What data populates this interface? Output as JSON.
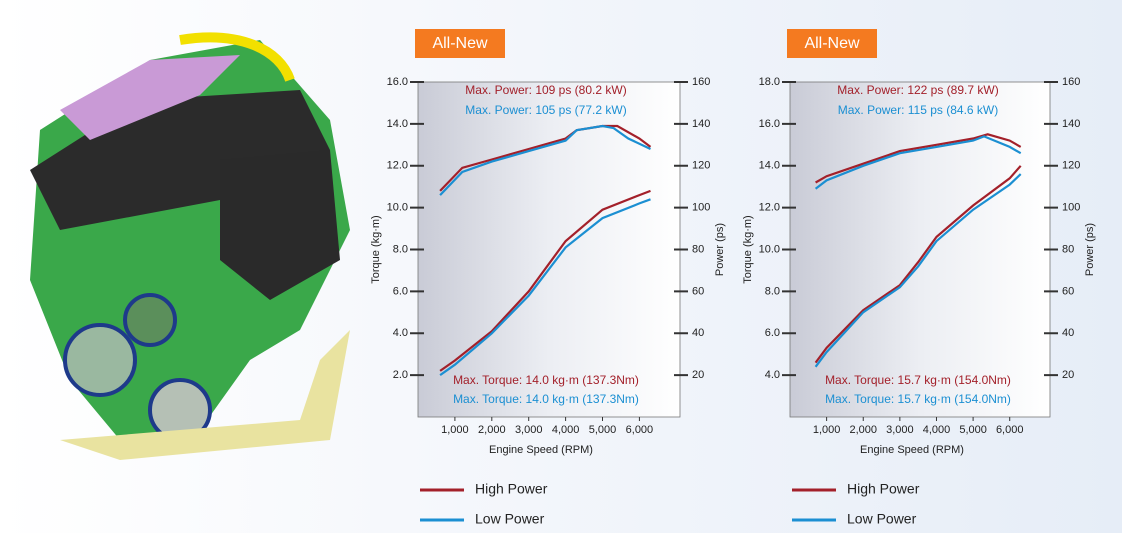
{
  "chart_data": [
    {
      "type": "line",
      "badge": "All-New",
      "x_label": "Engine Speed (RPM)",
      "y_label": "Torque (kg·m)",
      "y2_label": "Power (ps)",
      "xlim": [
        0,
        7100
      ],
      "xticks": [
        {
          "value": 1000,
          "label": "1,000"
        },
        {
          "value": 2000,
          "label": "2,000"
        },
        {
          "value": 3000,
          "label": "3,000"
        },
        {
          "value": 4000,
          "label": "4,000"
        },
        {
          "value": 5000,
          "label": "5,000"
        },
        {
          "value": 6000,
          "label": "6,000"
        }
      ],
      "ylim": [
        0,
        16
      ],
      "yticks": [
        {
          "value": 2,
          "label": "2.0"
        },
        {
          "value": 4,
          "label": "4.0"
        },
        {
          "value": 6,
          "label": "6.0"
        },
        {
          "value": 8,
          "label": "8.0"
        },
        {
          "value": 10,
          "label": "10.0"
        },
        {
          "value": 12,
          "label": "12.0"
        },
        {
          "value": 14,
          "label": "14.0"
        },
        {
          "value": 16,
          "label": "16.0"
        }
      ],
      "y2lim": [
        0,
        160
      ],
      "y2ticks": [
        20,
        40,
        60,
        80,
        100,
        120,
        140,
        160
      ],
      "annotations": [
        {
          "text": "Max. Power: 109 ps (80.2 kW)",
          "color": "#a3202a"
        },
        {
          "text": "Max. Power: 105 ps (77.2 kW)",
          "color": "#1b8fd2"
        },
        {
          "text": "Max. Torque: 14.0 kg·m (137.3Nm)",
          "color": "#a3202a"
        },
        {
          "text": "Max. Torque: 14.0 kg·m (137.3Nm)",
          "color": "#1b8fd2"
        }
      ],
      "series": [
        {
          "name": "High Power",
          "color": "#a3202a",
          "axis": "y",
          "x": [
            600,
            1200,
            2000,
            3000,
            4000,
            4300,
            5000,
            5400,
            6000,
            6300
          ],
          "values": [
            10.8,
            11.9,
            12.3,
            12.8,
            13.3,
            13.7,
            13.9,
            13.9,
            13.3,
            12.9
          ]
        },
        {
          "name": "Low Power",
          "color": "#1b8fd2",
          "axis": "y",
          "x": [
            600,
            1200,
            2000,
            3000,
            4000,
            4300,
            5000,
            5300,
            5700,
            6300
          ],
          "values": [
            10.6,
            11.7,
            12.2,
            12.7,
            13.2,
            13.7,
            13.9,
            13.8,
            13.3,
            12.8
          ]
        },
        {
          "name": "High Power",
          "color": "#a3202a",
          "axis": "y2",
          "x": [
            600,
            1000,
            2000,
            3000,
            4000,
            5000,
            6000,
            6300
          ],
          "values": [
            22,
            27,
            41,
            60,
            84,
            99,
            106,
            108
          ]
        },
        {
          "name": "Low Power",
          "color": "#1b8fd2",
          "axis": "y2",
          "x": [
            600,
            1000,
            2000,
            3000,
            4000,
            5000,
            6000,
            6300
          ],
          "values": [
            20,
            25,
            40,
            58,
            81,
            95,
            102,
            104
          ]
        }
      ]
    },
    {
      "type": "line",
      "badge": "All-New",
      "x_label": "Engine Speed (RPM)",
      "y_label": "Torque (kg·m)",
      "y2_label": "Power (ps)",
      "xlim": [
        0,
        7100
      ],
      "xticks": [
        {
          "value": 1000,
          "label": "1,000"
        },
        {
          "value": 2000,
          "label": "2,000"
        },
        {
          "value": 3000,
          "label": "3,000"
        },
        {
          "value": 4000,
          "label": "4,000"
        },
        {
          "value": 5000,
          "label": "5,000"
        },
        {
          "value": 6000,
          "label": "6,000"
        }
      ],
      "ylim": [
        2,
        18
      ],
      "yticks": [
        {
          "value": 4,
          "label": "4.0"
        },
        {
          "value": 6,
          "label": "6.0"
        },
        {
          "value": 8,
          "label": "8.0"
        },
        {
          "value": 10,
          "label": "10.0"
        },
        {
          "value": 12,
          "label": "12.0"
        },
        {
          "value": 14,
          "label": "14.0"
        },
        {
          "value": 16,
          "label": "16.0"
        },
        {
          "value": 18,
          "label": "18.0"
        }
      ],
      "y2lim": [
        0,
        160
      ],
      "y2ticks": [
        20,
        40,
        60,
        80,
        100,
        120,
        140,
        160
      ],
      "annotations": [
        {
          "text": "Max. Power: 122 ps (89.7 kW)",
          "color": "#a3202a"
        },
        {
          "text": "Max. Power: 115 ps (84.6 kW)",
          "color": "#1b8fd2"
        },
        {
          "text": "Max. Torque: 15.7 kg·m (154.0Nm)",
          "color": "#a3202a"
        },
        {
          "text": "Max. Torque: 15.7 kg·m (154.0Nm)",
          "color": "#1b8fd2"
        }
      ],
      "series": [
        {
          "name": "High Power",
          "color": "#a3202a",
          "axis": "y",
          "x": [
            700,
            1000,
            2000,
            3000,
            4000,
            5000,
            5400,
            6000,
            6300
          ],
          "values": [
            13.2,
            13.5,
            14.1,
            14.7,
            15.0,
            15.3,
            15.5,
            15.2,
            14.9
          ]
        },
        {
          "name": "Low Power",
          "color": "#1b8fd2",
          "axis": "y",
          "x": [
            700,
            1000,
            2000,
            3000,
            4000,
            5000,
            5300,
            6000,
            6300
          ],
          "values": [
            12.9,
            13.3,
            14.0,
            14.6,
            14.9,
            15.2,
            15.4,
            14.9,
            14.6
          ]
        },
        {
          "name": "High Power",
          "color": "#a3202a",
          "axis": "y2",
          "x": [
            700,
            1000,
            2000,
            3000,
            3500,
            4000,
            5000,
            6000,
            6300
          ],
          "values": [
            26,
            33,
            51,
            63,
            74,
            86,
            101,
            114,
            120
          ]
        },
        {
          "name": "Low Power",
          "color": "#1b8fd2",
          "axis": "y2",
          "x": [
            700,
            1000,
            2000,
            3000,
            3500,
            4000,
            5000,
            6000,
            6300
          ],
          "values": [
            24,
            31,
            50,
            62,
            72,
            84,
            99,
            111,
            116
          ]
        }
      ]
    }
  ]
}
